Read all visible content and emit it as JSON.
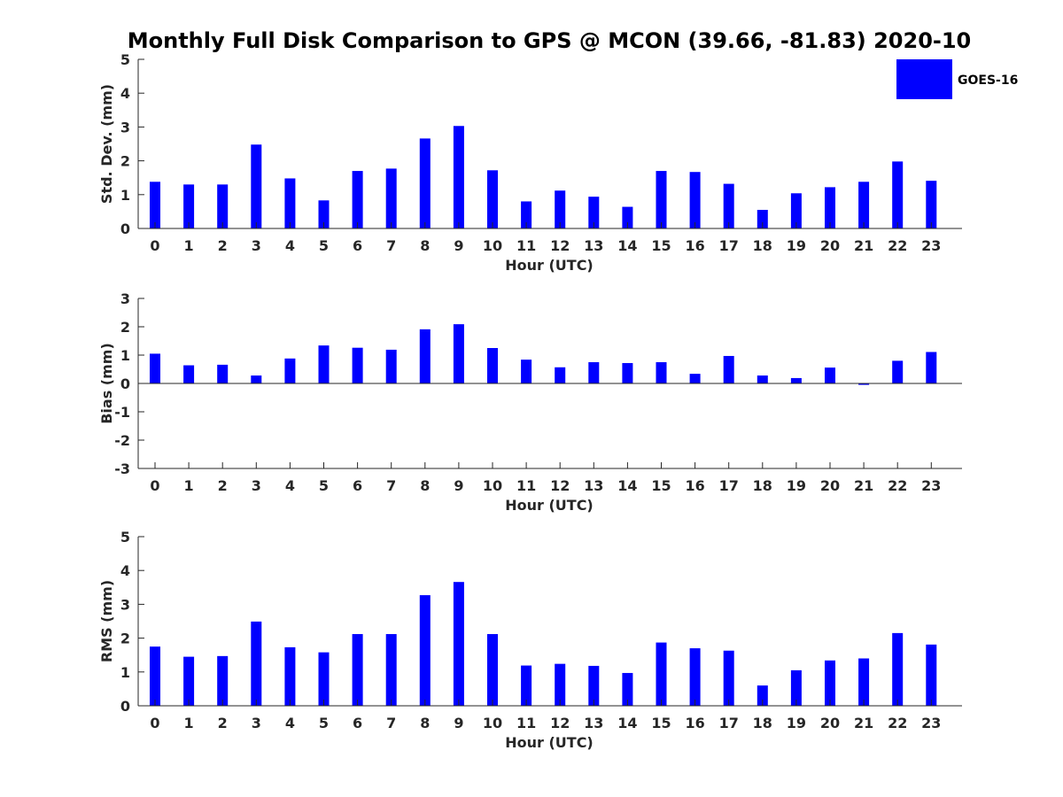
{
  "colors": {
    "series": "#0000ff",
    "axis": "#262626",
    "background": "#ffffff"
  },
  "figure_title": "Monthly Full Disk Comparison to GPS @ MCON (39.66, -81.83) 2020-10",
  "legend": {
    "label": "GOES-16",
    "placement": "top-right"
  },
  "chart_data": [
    {
      "type": "bar",
      "xlabel": "Hour (UTC)",
      "ylabel": "Std. Dev. (mm)",
      "ylim": [
        0,
        5
      ],
      "yticks": [
        "0",
        "1",
        "2",
        "3",
        "4",
        "5"
      ],
      "categories": [
        "0",
        "1",
        "2",
        "3",
        "4",
        "5",
        "6",
        "7",
        "8",
        "9",
        "10",
        "11",
        "12",
        "13",
        "14",
        "15",
        "16",
        "17",
        "18",
        "19",
        "20",
        "21",
        "22",
        "23"
      ],
      "series": [
        {
          "name": "GOES-16",
          "values": [
            1.38,
            1.3,
            1.3,
            2.48,
            1.48,
            0.83,
            1.7,
            1.77,
            2.66,
            3.03,
            1.72,
            0.8,
            1.12,
            0.94,
            0.64,
            1.7,
            1.67,
            1.32,
            0.55,
            1.04,
            1.22,
            1.38,
            1.98,
            1.41
          ]
        }
      ]
    },
    {
      "type": "bar",
      "xlabel": "Hour (UTC)",
      "ylabel": "Bias (mm)",
      "ylim": [
        -3,
        3
      ],
      "yticks": [
        "-3",
        "-2",
        "-1",
        "0",
        "1",
        "2",
        "3"
      ],
      "categories": [
        "0",
        "1",
        "2",
        "3",
        "4",
        "5",
        "6",
        "7",
        "8",
        "9",
        "10",
        "11",
        "12",
        "13",
        "14",
        "15",
        "16",
        "17",
        "18",
        "19",
        "20",
        "21",
        "22",
        "23"
      ],
      "series": [
        {
          "name": "GOES-16",
          "values": [
            1.05,
            0.64,
            0.66,
            0.28,
            0.88,
            1.34,
            1.26,
            1.19,
            1.91,
            2.09,
            1.25,
            0.84,
            0.57,
            0.75,
            0.72,
            0.75,
            0.34,
            0.97,
            0.28,
            0.19,
            0.56,
            -0.05,
            0.8,
            1.11
          ]
        }
      ]
    },
    {
      "type": "bar",
      "xlabel": "Hour (UTC)",
      "ylabel": "RMS (mm)",
      "ylim": [
        0,
        5
      ],
      "yticks": [
        "0",
        "1",
        "2",
        "3",
        "4",
        "5"
      ],
      "categories": [
        "0",
        "1",
        "2",
        "3",
        "4",
        "5",
        "6",
        "7",
        "8",
        "9",
        "10",
        "11",
        "12",
        "13",
        "14",
        "15",
        "16",
        "17",
        "18",
        "19",
        "20",
        "21",
        "22",
        "23"
      ],
      "series": [
        {
          "name": "GOES-16",
          "values": [
            1.75,
            1.45,
            1.47,
            2.49,
            1.73,
            1.58,
            2.12,
            2.12,
            3.27,
            3.66,
            2.12,
            1.19,
            1.24,
            1.18,
            0.97,
            1.87,
            1.7,
            1.63,
            0.6,
            1.05,
            1.34,
            1.4,
            2.15,
            1.81
          ]
        }
      ]
    }
  ]
}
